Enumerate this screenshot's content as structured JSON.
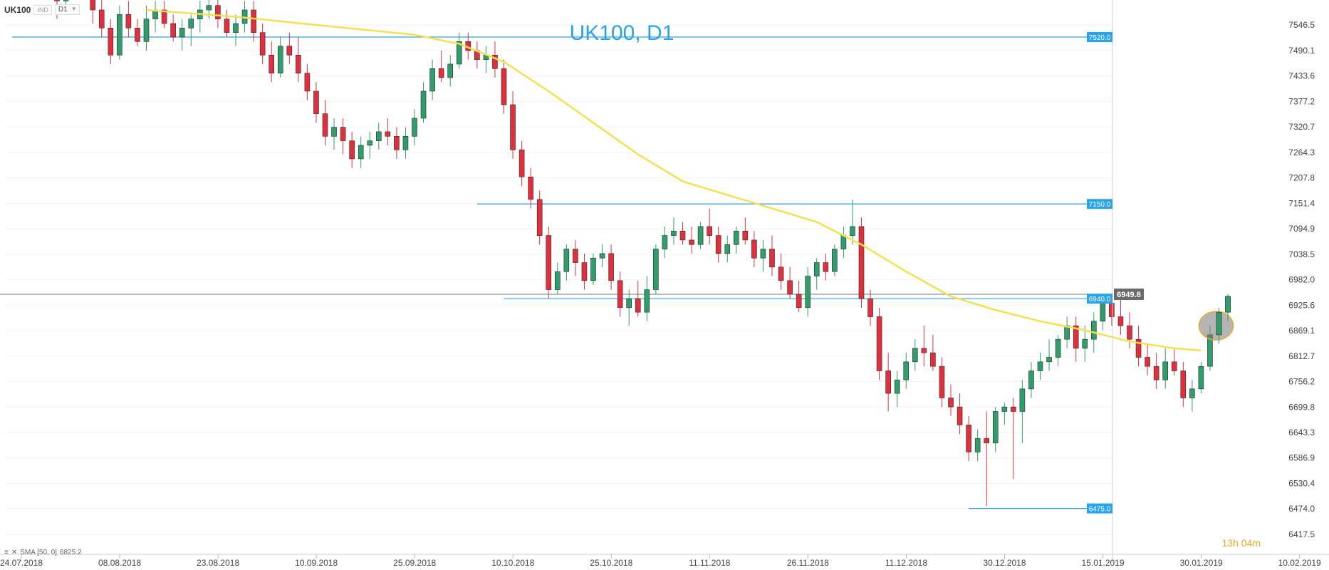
{
  "toolbar": {
    "symbol": "UK100",
    "instrument_tag": "IND",
    "timeframe": "D1"
  },
  "chart_data": {
    "type": "candlestick",
    "title": "UK100, D1",
    "y_ticks": [
      7546.5,
      7490.1,
      7433.6,
      7377.2,
      7320.7,
      7264.3,
      7207.8,
      7151.4,
      7094.9,
      7038.5,
      6982.0,
      6925.6,
      6869.1,
      6812.7,
      6756.2,
      6699.8,
      6643.3,
      6586.9,
      6530.4,
      6474.0,
      6417.5
    ],
    "y_tick_labels": [
      "7546.5",
      "7490.1",
      "7433.6",
      "7377.2",
      "7320.7",
      "7264.3",
      "7207.8",
      "7151.4",
      "7094.9",
      "7038.5",
      "6982.0",
      "6925.6",
      "6869.1",
      "6812.7",
      "6756.2",
      "6699.8",
      "6643.3",
      "6586.9",
      "6530.4",
      "6474.0",
      "6417.5"
    ],
    "x_labels": [
      "24.07.2018",
      "08.08.2018",
      "23.08.2018",
      "10.09.2018",
      "25.09.2018",
      "10.10.2018",
      "25.10.2018",
      "11.11.2018",
      "26.11.2018",
      "11.12.2018",
      "30.12.2018",
      "15.01.2019",
      "30.01.2019",
      "10.02.2019"
    ],
    "x_label_bars": [
      0,
      11,
      22,
      33,
      44,
      55,
      66,
      77,
      88,
      99,
      110,
      121,
      132,
      143
    ],
    "horizontal_levels": [
      {
        "value": 7520.0,
        "label": "7520.0",
        "start_bar": -5
      },
      {
        "value": 7150.0,
        "label": "7150.0",
        "start_bar": 47
      },
      {
        "value": 6940.0,
        "label": "6940.0",
        "start_bar": 50
      },
      {
        "value": 6475.0,
        "label": "6475.0",
        "start_bar": 102
      }
    ],
    "current_price": {
      "value": 6949.8,
      "label": "6949.8"
    },
    "highlight_bar": 130,
    "sma": {
      "label": "SMA [50, 0]",
      "value": "6825.2",
      "color": "#f5e050",
      "points": [
        [
          10,
          7580
        ],
        [
          20,
          7565
        ],
        [
          30,
          7545
        ],
        [
          40,
          7525
        ],
        [
          45,
          7505
        ],
        [
          50,
          7465
        ],
        [
          55,
          7400
        ],
        [
          60,
          7330
        ],
        [
          65,
          7260
        ],
        [
          70,
          7200
        ],
        [
          75,
          7170
        ],
        [
          80,
          7140
        ],
        [
          85,
          7110
        ],
        [
          90,
          7060
        ],
        [
          95,
          7000
        ],
        [
          100,
          6945
        ],
        [
          105,
          6915
        ],
        [
          110,
          6890
        ],
        [
          115,
          6870
        ],
        [
          120,
          6845
        ],
        [
          125,
          6830
        ],
        [
          128,
          6825.2
        ]
      ]
    },
    "ohlc": [
      [
        7660,
        7670,
        7560,
        7600
      ],
      [
        7600,
        7650,
        7580,
        7640
      ],
      [
        7640,
        7680,
        7620,
        7650
      ],
      [
        7650,
        7690,
        7610,
        7630
      ],
      [
        7630,
        7660,
        7550,
        7580
      ],
      [
        7580,
        7620,
        7520,
        7540
      ],
      [
        7540,
        7560,
        7460,
        7480
      ],
      [
        7480,
        7590,
        7470,
        7570
      ],
      [
        7570,
        7600,
        7520,
        7540
      ],
      [
        7540,
        7560,
        7500,
        7510
      ],
      [
        7510,
        7590,
        7490,
        7560
      ],
      [
        7560,
        7600,
        7530,
        7580
      ],
      [
        7580,
        7600,
        7540,
        7550
      ],
      [
        7550,
        7570,
        7510,
        7520
      ],
      [
        7520,
        7560,
        7490,
        7540
      ],
      [
        7540,
        7570,
        7500,
        7560
      ],
      [
        7560,
        7600,
        7530,
        7580
      ],
      [
        7580,
        7610,
        7560,
        7590
      ],
      [
        7590,
        7620,
        7540,
        7560
      ],
      [
        7560,
        7580,
        7520,
        7530
      ],
      [
        7530,
        7570,
        7500,
        7550
      ],
      [
        7550,
        7600,
        7530,
        7580
      ],
      [
        7580,
        7600,
        7510,
        7530
      ],
      [
        7530,
        7550,
        7460,
        7480
      ],
      [
        7480,
        7510,
        7420,
        7440
      ],
      [
        7440,
        7520,
        7430,
        7500
      ],
      [
        7500,
        7530,
        7460,
        7480
      ],
      [
        7480,
        7520,
        7420,
        7440
      ],
      [
        7440,
        7460,
        7380,
        7400
      ],
      [
        7400,
        7420,
        7330,
        7350
      ],
      [
        7350,
        7380,
        7280,
        7300
      ],
      [
        7300,
        7340,
        7270,
        7320
      ],
      [
        7320,
        7340,
        7260,
        7290
      ],
      [
        7290,
        7310,
        7230,
        7250
      ],
      [
        7250,
        7300,
        7230,
        7280
      ],
      [
        7280,
        7310,
        7250,
        7290
      ],
      [
        7290,
        7330,
        7270,
        7310
      ],
      [
        7310,
        7340,
        7280,
        7300
      ],
      [
        7300,
        7320,
        7250,
        7270
      ],
      [
        7270,
        7320,
        7250,
        7300
      ],
      [
        7300,
        7360,
        7280,
        7340
      ],
      [
        7340,
        7420,
        7330,
        7400
      ],
      [
        7400,
        7470,
        7380,
        7450
      ],
      [
        7450,
        7490,
        7420,
        7430
      ],
      [
        7430,
        7480,
        7410,
        7460
      ],
      [
        7460,
        7530,
        7450,
        7510
      ],
      [
        7510,
        7530,
        7470,
        7490
      ],
      [
        7490,
        7510,
        7450,
        7470
      ],
      [
        7470,
        7500,
        7440,
        7480
      ],
      [
        7480,
        7510,
        7430,
        7450
      ],
      [
        7450,
        7470,
        7350,
        7370
      ],
      [
        7370,
        7400,
        7250,
        7270
      ],
      [
        7270,
        7290,
        7190,
        7210
      ],
      [
        7210,
        7230,
        7140,
        7160
      ],
      [
        7160,
        7180,
        7060,
        7080
      ],
      [
        7080,
        7100,
        6940,
        6960
      ],
      [
        6960,
        7020,
        6950,
        7000
      ],
      [
        7000,
        7060,
        6980,
        7050
      ],
      [
        7050,
        7070,
        6990,
        7020
      ],
      [
        7020,
        7040,
        6960,
        6980
      ],
      [
        6980,
        7040,
        6970,
        7030
      ],
      [
        7030,
        7060,
        7010,
        7040
      ],
      [
        7040,
        7060,
        6960,
        6980
      ],
      [
        6980,
        7000,
        6900,
        6920
      ],
      [
        6920,
        6960,
        6880,
        6940
      ],
      [
        6940,
        6980,
        6900,
        6910
      ],
      [
        6910,
        6990,
        6890,
        6960
      ],
      [
        6960,
        7060,
        6950,
        7050
      ],
      [
        7050,
        7100,
        7030,
        7080
      ],
      [
        7080,
        7120,
        7060,
        7090
      ],
      [
        7090,
        7110,
        7060,
        7070
      ],
      [
        7070,
        7100,
        7040,
        7060
      ],
      [
        7060,
        7110,
        7050,
        7100
      ],
      [
        7100,
        7140,
        7060,
        7080
      ],
      [
        7080,
        7100,
        7020,
        7040
      ],
      [
        7040,
        7080,
        7020,
        7060
      ],
      [
        7060,
        7100,
        7040,
        7090
      ],
      [
        7090,
        7120,
        7060,
        7070
      ],
      [
        7070,
        7090,
        7010,
        7030
      ],
      [
        7030,
        7070,
        7000,
        7050
      ],
      [
        7050,
        7080,
        6990,
        7010
      ],
      [
        7010,
        7040,
        6960,
        6980
      ],
      [
        6980,
        7010,
        6940,
        6950
      ],
      [
        6950,
        6980,
        6910,
        6920
      ],
      [
        6920,
        7010,
        6900,
        6990
      ],
      [
        6990,
        7030,
        6960,
        7020
      ],
      [
        7020,
        7040,
        6980,
        7000
      ],
      [
        7000,
        7060,
        6990,
        7050
      ],
      [
        7050,
        7100,
        7030,
        7080
      ],
      [
        7080,
        7160,
        7060,
        7100
      ],
      [
        7100,
        7120,
        6920,
        6940
      ],
      [
        6940,
        6960,
        6880,
        6900
      ],
      [
        6900,
        6920,
        6760,
        6780
      ],
      [
        6780,
        6820,
        6690,
        6730
      ],
      [
        6730,
        6780,
        6700,
        6760
      ],
      [
        6760,
        6820,
        6740,
        6800
      ],
      [
        6800,
        6850,
        6780,
        6830
      ],
      [
        6830,
        6880,
        6790,
        6820
      ],
      [
        6820,
        6860,
        6780,
        6790
      ],
      [
        6790,
        6810,
        6700,
        6720
      ],
      [
        6720,
        6750,
        6680,
        6700
      ],
      [
        6700,
        6730,
        6640,
        6660
      ],
      [
        6660,
        6680,
        6580,
        6600
      ],
      [
        6600,
        6650,
        6580,
        6630
      ],
      [
        6630,
        6690,
        6480,
        6620
      ],
      [
        6620,
        6700,
        6600,
        6690
      ],
      [
        6690,
        6710,
        6660,
        6700
      ],
      [
        6700,
        6720,
        6540,
        6690
      ],
      [
        6690,
        6760,
        6620,
        6740
      ],
      [
        6740,
        6800,
        6720,
        6780
      ],
      [
        6780,
        6820,
        6760,
        6800
      ],
      [
        6800,
        6850,
        6780,
        6810
      ],
      [
        6810,
        6860,
        6790,
        6850
      ],
      [
        6850,
        6900,
        6830,
        6880
      ],
      [
        6880,
        6900,
        6800,
        6830
      ],
      [
        6830,
        6880,
        6800,
        6850
      ],
      [
        6850,
        6910,
        6820,
        6890
      ],
      [
        6890,
        6940,
        6870,
        6930
      ],
      [
        6930,
        6950,
        6880,
        6900
      ],
      [
        6900,
        6940,
        6860,
        6880
      ],
      [
        6880,
        6910,
        6830,
        6850
      ],
      [
        6850,
        6880,
        6790,
        6810
      ],
      [
        6810,
        6840,
        6770,
        6790
      ],
      [
        6790,
        6820,
        6740,
        6760
      ],
      [
        6760,
        6830,
        6740,
        6800
      ],
      [
        6800,
        6830,
        6770,
        6780
      ],
      [
        6780,
        6800,
        6700,
        6720
      ],
      [
        6720,
        6760,
        6690,
        6740
      ],
      [
        6740,
        6800,
        6730,
        6790
      ],
      [
        6790,
        6880,
        6780,
        6860
      ],
      [
        6860,
        6920,
        6840,
        6910
      ],
      [
        6910,
        6950,
        6890,
        6945
      ]
    ]
  },
  "legend": {
    "indicator_label": "SMA [50, 0]",
    "indicator_value": "6825.2"
  },
  "countdown": {
    "hours": "13",
    "h_suffix": "h",
    "minutes": "04",
    "m_suffix": "m"
  },
  "colors": {
    "bull": "#2f9e6b",
    "bear": "#e0303e",
    "level": "#2aa4e8",
    "current": "#7a7a7a",
    "sma": "#f5e050"
  }
}
